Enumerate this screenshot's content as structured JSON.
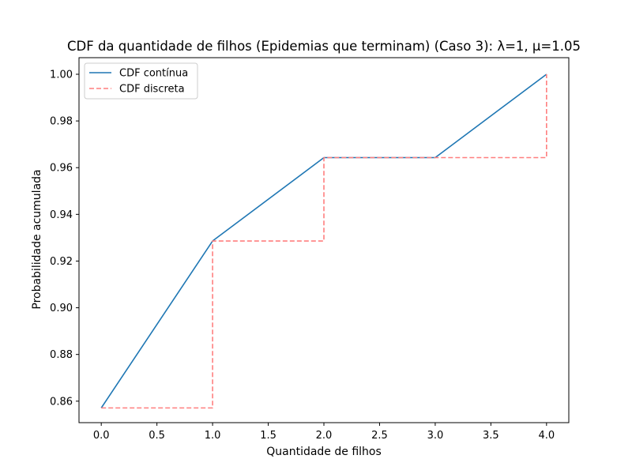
{
  "chart_data": {
    "type": "line",
    "title": "CDF da quantidade de filhos (Epidemias que terminam) (Caso 3): λ=1, μ=1.05",
    "xlabel": "Quantidade de filhos",
    "ylabel": "Probabilidade acumulada",
    "xlim": [
      -0.2,
      4.2
    ],
    "ylim": [
      0.8508,
      1.0071
    ],
    "x_ticks": [
      0.0,
      0.5,
      1.0,
      1.5,
      2.0,
      2.5,
      3.0,
      3.5,
      4.0
    ],
    "x_tick_labels": [
      "0.0",
      "0.5",
      "1.0",
      "1.5",
      "2.0",
      "2.5",
      "3.0",
      "3.5",
      "4.0"
    ],
    "y_ticks": [
      0.86,
      0.88,
      0.9,
      0.92,
      0.94,
      0.96,
      0.98,
      1.0
    ],
    "y_tick_labels": [
      "0.86",
      "0.88",
      "0.90",
      "0.92",
      "0.94",
      "0.96",
      "0.98",
      "1.00"
    ],
    "grid": false,
    "legend_position": "top-left",
    "series": [
      {
        "name": "CDF contínua",
        "style": "solid",
        "color": "#1f77b4",
        "x": [
          0,
          1,
          2,
          3,
          4
        ],
        "y": [
          0.8571,
          0.9286,
          0.9643,
          0.9643,
          1.0
        ]
      },
      {
        "name": "CDF discreta",
        "style": "dashed-step-post",
        "color": "#ff7f7f",
        "x": [
          0,
          1,
          2,
          3,
          4
        ],
        "y": [
          0.8571,
          0.9286,
          0.9643,
          0.9643,
          1.0
        ]
      }
    ]
  }
}
